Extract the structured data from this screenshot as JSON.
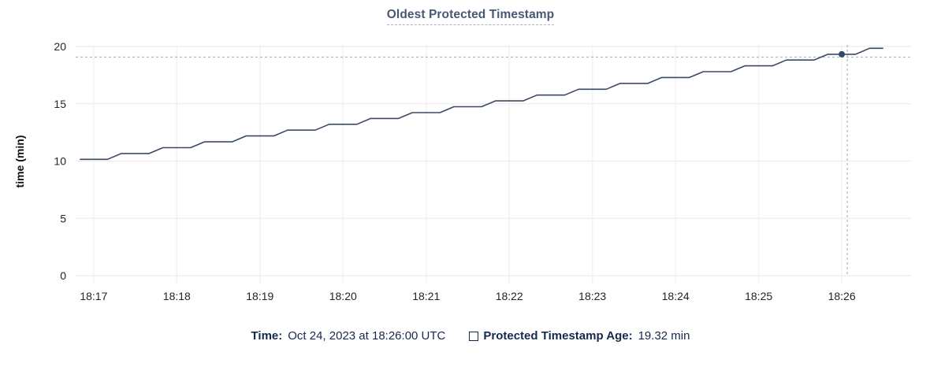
{
  "header": {
    "title": "Oldest Protected Timestamp"
  },
  "colors": {
    "line": "#3b4a63",
    "dot": "#344766",
    "grid_horizontal": "#ececec",
    "grid_vertical": "#f1f1f1",
    "crosshair": "#a8b9c7",
    "tick_text": "#242424",
    "axis_label_text": "#111111",
    "title_text": "#475872",
    "legend_text": "#15294d"
  },
  "legend": {
    "time_label": "Time:",
    "time_value": "Oct 24, 2023 at 18:26:00 UTC",
    "series_label": "Protected Timestamp Age:",
    "series_value": "19.32 min"
  },
  "chart_data": {
    "type": "line",
    "title": "Oldest Protected Timestamp",
    "xlabel": "",
    "ylabel": "time (min)",
    "ylim": [
      0,
      20
    ],
    "y_ticks": [
      0,
      5,
      10,
      15,
      20
    ],
    "x_ticks": [
      "18:17",
      "18:18",
      "18:19",
      "18:20",
      "18:21",
      "18:22",
      "18:23",
      "18:24",
      "18:25",
      "18:26"
    ],
    "x_domain": {
      "start": "18:16:47",
      "end": "18:26:50"
    },
    "grid": true,
    "legend_position": "bottom",
    "hover": {
      "time": "18:26:00",
      "value": 19.32,
      "crosshair_time": "18:26:04",
      "crosshair_value": 19.07,
      "display_time": "Oct 24, 2023 at 18:26:00 UTC",
      "display_value": "19.32 min"
    },
    "series": [
      {
        "name": "Protected Timestamp Age",
        "unit": "min",
        "points": [
          [
            "18:16:50",
            10.15
          ],
          [
            "18:17:00",
            10.15
          ],
          [
            "18:17:10",
            10.15
          ],
          [
            "18:17:20",
            10.66
          ],
          [
            "18:17:30",
            10.66
          ],
          [
            "18:17:40",
            10.66
          ],
          [
            "18:17:50",
            11.17
          ],
          [
            "18:18:00",
            11.17
          ],
          [
            "18:18:10",
            11.17
          ],
          [
            "18:18:20",
            11.68
          ],
          [
            "18:18:30",
            11.68
          ],
          [
            "18:18:40",
            11.68
          ],
          [
            "18:18:50",
            12.19
          ],
          [
            "18:19:00",
            12.19
          ],
          [
            "18:19:10",
            12.19
          ],
          [
            "18:19:20",
            12.7
          ],
          [
            "18:19:30",
            12.7
          ],
          [
            "18:19:40",
            12.7
          ],
          [
            "18:19:50",
            13.21
          ],
          [
            "18:20:00",
            13.21
          ],
          [
            "18:20:10",
            13.21
          ],
          [
            "18:20:20",
            13.72
          ],
          [
            "18:20:30",
            13.72
          ],
          [
            "18:20:40",
            13.72
          ],
          [
            "18:20:50",
            14.23
          ],
          [
            "18:21:00",
            14.23
          ],
          [
            "18:21:10",
            14.23
          ],
          [
            "18:21:20",
            14.74
          ],
          [
            "18:21:30",
            14.74
          ],
          [
            "18:21:40",
            14.74
          ],
          [
            "18:21:50",
            15.25
          ],
          [
            "18:22:00",
            15.25
          ],
          [
            "18:22:10",
            15.25
          ],
          [
            "18:22:20",
            15.76
          ],
          [
            "18:22:30",
            15.76
          ],
          [
            "18:22:40",
            15.76
          ],
          [
            "18:22:50",
            16.27
          ],
          [
            "18:23:00",
            16.27
          ],
          [
            "18:23:10",
            16.27
          ],
          [
            "18:23:20",
            16.78
          ],
          [
            "18:23:30",
            16.78
          ],
          [
            "18:23:40",
            16.78
          ],
          [
            "18:23:50",
            17.29
          ],
          [
            "18:24:00",
            17.29
          ],
          [
            "18:24:10",
            17.29
          ],
          [
            "18:24:20",
            17.8
          ],
          [
            "18:24:30",
            17.8
          ],
          [
            "18:24:40",
            17.8
          ],
          [
            "18:24:50",
            18.31
          ],
          [
            "18:25:00",
            18.31
          ],
          [
            "18:25:10",
            18.31
          ],
          [
            "18:25:20",
            18.82
          ],
          [
            "18:25:30",
            18.82
          ],
          [
            "18:25:40",
            18.82
          ],
          [
            "18:25:50",
            19.32
          ],
          [
            "18:26:00",
            19.32
          ],
          [
            "18:26:10",
            19.32
          ],
          [
            "18:26:20",
            19.84
          ],
          [
            "18:26:30",
            19.84
          ]
        ]
      }
    ]
  }
}
